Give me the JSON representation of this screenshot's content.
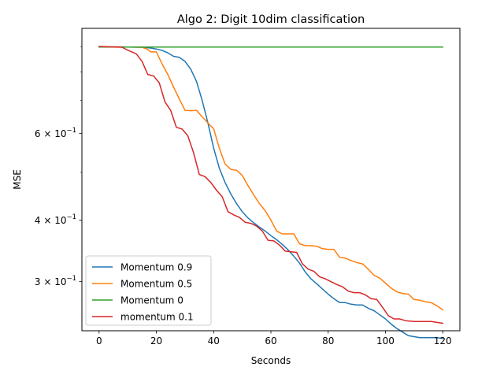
{
  "chart_data": {
    "type": "line",
    "title": "Algo 2: Digit 10dim classification",
    "xlabel": "Seconds",
    "ylabel": "MSE",
    "x_range": [
      -6,
      126
    ],
    "y_range": [
      0.2385,
      0.98
    ],
    "y_scale": "log",
    "grid": false,
    "legend_position": "lower-left",
    "x_ticks": [
      {
        "value": 0,
        "label": "0"
      },
      {
        "value": 20,
        "label": "20"
      },
      {
        "value": 40,
        "label": "40"
      },
      {
        "value": 60,
        "label": "60"
      },
      {
        "value": 80,
        "label": "80"
      },
      {
        "value": 100,
        "label": "100"
      },
      {
        "value": 120,
        "label": "120"
      }
    ],
    "y_ticks": [
      {
        "value": 0.3,
        "base": "3",
        "exp": "−1"
      },
      {
        "value": 0.4,
        "base": "4",
        "exp": "−1"
      },
      {
        "value": 0.6,
        "base": "6",
        "exp": "−1"
      }
    ],
    "series": [
      {
        "name": "Momentum 0.9",
        "color": "#1f77b4",
        "x": [
          0,
          5,
          10,
          15,
          18,
          20,
          22,
          24,
          26,
          28,
          30,
          32,
          34,
          36,
          38,
          40,
          42,
          44,
          46,
          48,
          50,
          52,
          54,
          56,
          58,
          60,
          62,
          64,
          66,
          68,
          70,
          72,
          74,
          76,
          78,
          80,
          82,
          84,
          86,
          88,
          90,
          92,
          94,
          96,
          98,
          100,
          102,
          104,
          106,
          108,
          110,
          112,
          114,
          116,
          118,
          120
        ],
        "y": [
          0.9,
          0.899,
          0.898,
          0.897,
          0.894,
          0.89,
          0.884,
          0.874,
          0.86,
          0.856,
          0.84,
          0.81,
          0.765,
          0.7,
          0.63,
          0.56,
          0.51,
          0.477,
          0.452,
          0.432,
          0.416,
          0.404,
          0.395,
          0.387,
          0.38,
          0.372,
          0.365,
          0.357,
          0.348,
          0.338,
          0.327,
          0.314,
          0.304,
          0.297,
          0.29,
          0.283,
          0.277,
          0.272,
          0.272,
          0.27,
          0.269,
          0.269,
          0.265,
          0.262,
          0.257,
          0.252,
          0.246,
          0.241,
          0.237,
          0.233,
          0.232,
          0.231,
          0.231,
          0.231,
          0.231,
          0.23
        ]
      },
      {
        "name": "Momentum 0.5",
        "color": "#ff7f0e",
        "x": [
          0,
          5,
          10,
          15,
          17,
          18,
          20,
          22,
          24,
          26,
          28,
          30,
          32,
          34,
          36,
          38,
          40,
          42,
          44,
          46,
          48,
          50,
          52,
          54,
          56,
          58,
          60,
          62,
          64,
          66,
          68,
          70,
          72,
          74,
          76,
          78,
          80,
          82,
          84,
          86,
          88,
          90,
          92,
          94,
          96,
          98,
          100,
          102,
          104,
          106,
          108,
          110,
          112,
          114,
          116,
          118,
          120
        ],
        "y": [
          0.9,
          0.899,
          0.898,
          0.897,
          0.888,
          0.878,
          0.878,
          0.83,
          0.79,
          0.745,
          0.705,
          0.668,
          0.667,
          0.668,
          0.648,
          0.63,
          0.613,
          0.56,
          0.52,
          0.507,
          0.505,
          0.493,
          0.47,
          0.45,
          0.432,
          0.418,
          0.4,
          0.38,
          0.375,
          0.375,
          0.375,
          0.358,
          0.355,
          0.355,
          0.354,
          0.35,
          0.349,
          0.349,
          0.336,
          0.335,
          0.331,
          0.328,
          0.326,
          0.318,
          0.309,
          0.305,
          0.298,
          0.291,
          0.286,
          0.284,
          0.283,
          0.276,
          0.275,
          0.273,
          0.272,
          0.268,
          0.263
        ]
      },
      {
        "name": "Momentum 0",
        "color": "#2ca02c",
        "x": [
          0,
          120
        ],
        "y": [
          0.898,
          0.898
        ]
      },
      {
        "name": "momentum 0.1",
        "color": "#d62728",
        "x": [
          0,
          5,
          8,
          10,
          13,
          15,
          17,
          19,
          21,
          23,
          25,
          27,
          29,
          31,
          33,
          35,
          37,
          39,
          41,
          43,
          45,
          47,
          49,
          51,
          53,
          55,
          57,
          59,
          61,
          63,
          65,
          67,
          69,
          71,
          73,
          75,
          77,
          79,
          81,
          83,
          85,
          87,
          89,
          91,
          93,
          95,
          97,
          99,
          101,
          103,
          105,
          107,
          110,
          113,
          116,
          118,
          120
        ],
        "y": [
          0.9,
          0.898,
          0.897,
          0.885,
          0.87,
          0.84,
          0.79,
          0.785,
          0.76,
          0.695,
          0.668,
          0.617,
          0.612,
          0.593,
          0.548,
          0.495,
          0.49,
          0.477,
          0.46,
          0.446,
          0.416,
          0.41,
          0.405,
          0.396,
          0.394,
          0.389,
          0.38,
          0.364,
          0.363,
          0.356,
          0.346,
          0.345,
          0.344,
          0.326,
          0.318,
          0.315,
          0.307,
          0.304,
          0.3,
          0.296,
          0.293,
          0.287,
          0.285,
          0.285,
          0.282,
          0.277,
          0.276,
          0.266,
          0.256,
          0.252,
          0.252,
          0.25,
          0.249,
          0.249,
          0.249,
          0.248,
          0.247
        ]
      }
    ]
  }
}
